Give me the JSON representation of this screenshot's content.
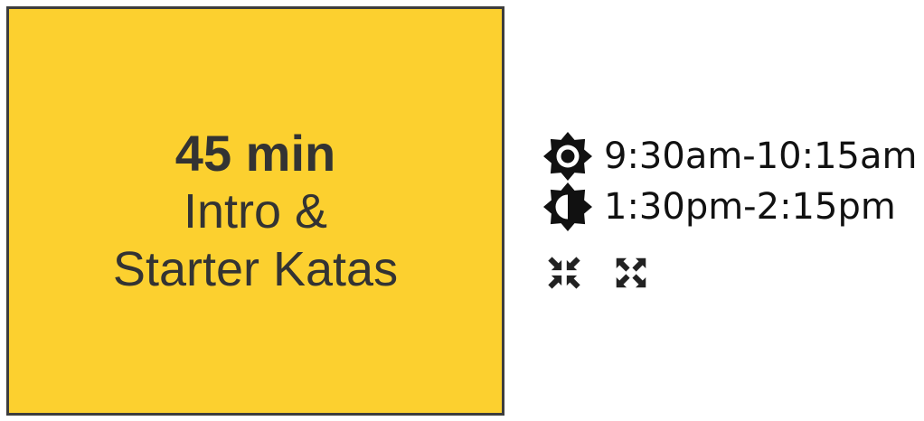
{
  "session": {
    "duration": "45 min",
    "title_line1": "Intro &",
    "title_line2": "Starter Katas",
    "background_color": "#fcd02f"
  },
  "schedule": [
    {
      "icon": "sun-icon",
      "time": "9:30am-10:15am"
    },
    {
      "icon": "half-sun-icon",
      "time": "1:30pm-2:15pm"
    }
  ],
  "controls": [
    {
      "icon": "collapse-icon"
    },
    {
      "icon": "expand-icon"
    }
  ]
}
